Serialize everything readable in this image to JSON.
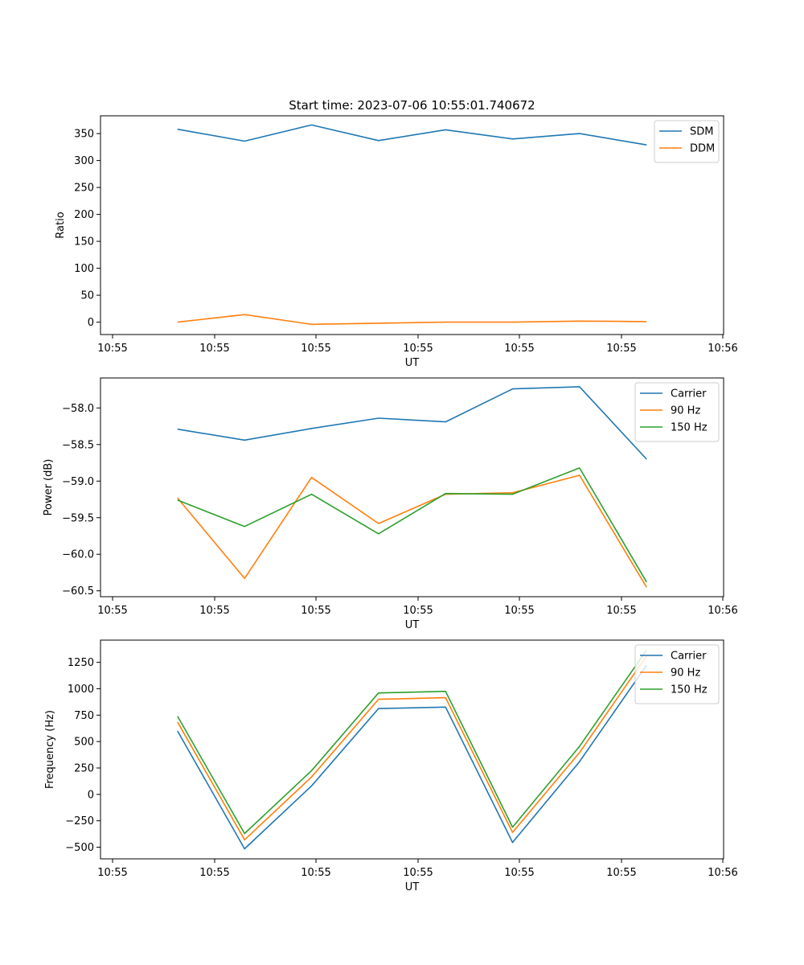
{
  "title": "Start time: 2023-07-06 10:55:01.740672",
  "chart_data": [
    {
      "type": "line",
      "id": "ratio",
      "xlabel": "UT",
      "ylabel": "Ratio",
      "x_tick_labels": [
        "10:55",
        "10:55",
        "10:55",
        "10:55",
        "10:55",
        "10:55",
        "10:56"
      ],
      "x": [
        1,
        2,
        3,
        4,
        5,
        6,
        7,
        8
      ],
      "xlim": [
        -0.15,
        9.15
      ],
      "ylim": [
        -23,
        383
      ],
      "yticks": [
        0,
        50,
        100,
        150,
        200,
        250,
        300,
        350
      ],
      "ytick_labels": [
        "0",
        "50",
        "100",
        "150",
        "200",
        "250",
        "300",
        "350"
      ],
      "legend_position": "upper right",
      "series": [
        {
          "name": "SDM",
          "color": "#1f77b4",
          "values": [
            358,
            336,
            366,
            337,
            357,
            340,
            350,
            329
          ]
        },
        {
          "name": "DDM",
          "color": "#ff7f0e",
          "values": [
            0,
            14,
            -4,
            -2,
            0,
            0,
            2,
            1
          ]
        }
      ]
    },
    {
      "type": "line",
      "id": "power",
      "xlabel": "UT",
      "ylabel": "Power (dB)",
      "x_tick_labels": [
        "10:55",
        "10:55",
        "10:55",
        "10:55",
        "10:55",
        "10:55",
        "10:56"
      ],
      "x": [
        1,
        2,
        3,
        4,
        5,
        6,
        7,
        8
      ],
      "xlim": [
        -0.15,
        9.15
      ],
      "ylim": [
        -60.58,
        -57.59
      ],
      "yticks": [
        -60.5,
        -60.0,
        -59.5,
        -59.0,
        -58.5,
        -58.0
      ],
      "ytick_labels": [
        "−60.5",
        "−60.0",
        "−59.5",
        "−59.0",
        "−58.5",
        "−58.0"
      ],
      "legend_position": "upper right",
      "series": [
        {
          "name": "Carrier",
          "color": "#1f77b4",
          "values": [
            -58.29,
            -58.44,
            -58.28,
            -58.14,
            -58.19,
            -57.74,
            -57.71,
            -58.7
          ]
        },
        {
          "name": "90 Hz",
          "color": "#ff7f0e",
          "values": [
            -59.23,
            -60.33,
            -58.95,
            -59.58,
            -59.18,
            -59.16,
            -58.92,
            -60.45
          ]
        },
        {
          "name": "150 Hz",
          "color": "#2ca02c",
          "values": [
            -59.26,
            -59.62,
            -59.18,
            -59.72,
            -59.17,
            -59.18,
            -58.82,
            -60.38
          ]
        }
      ]
    },
    {
      "type": "line",
      "id": "frequency",
      "xlabel": "UT",
      "ylabel": "Frequency (Hz)",
      "x_tick_labels": [
        "10:55",
        "10:55",
        "10:55",
        "10:55",
        "10:55",
        "10:55",
        "10:56"
      ],
      "x": [
        1,
        2,
        3,
        4,
        5,
        6,
        7,
        8
      ],
      "xlim": [
        -0.15,
        9.15
      ],
      "ylim": [
        -610,
        1460
      ],
      "yticks": [
        -500,
        -250,
        0,
        250,
        500,
        750,
        1000,
        1250
      ],
      "ytick_labels": [
        "−500",
        "−250",
        "0",
        "250",
        "500",
        "750",
        "1000",
        "1250"
      ],
      "legend_position": "upper right",
      "series": [
        {
          "name": "Carrier",
          "color": "#1f77b4",
          "values": [
            600,
            -515,
            80,
            812,
            826,
            -455,
            310,
            1222
          ]
        },
        {
          "name": "90 Hz",
          "color": "#ff7f0e",
          "values": [
            685,
            -430,
            165,
            900,
            915,
            -360,
            395,
            1310
          ]
        },
        {
          "name": "150 Hz",
          "color": "#2ca02c",
          "values": [
            740,
            -370,
            225,
            960,
            975,
            -310,
            455,
            1366
          ]
        }
      ]
    }
  ]
}
